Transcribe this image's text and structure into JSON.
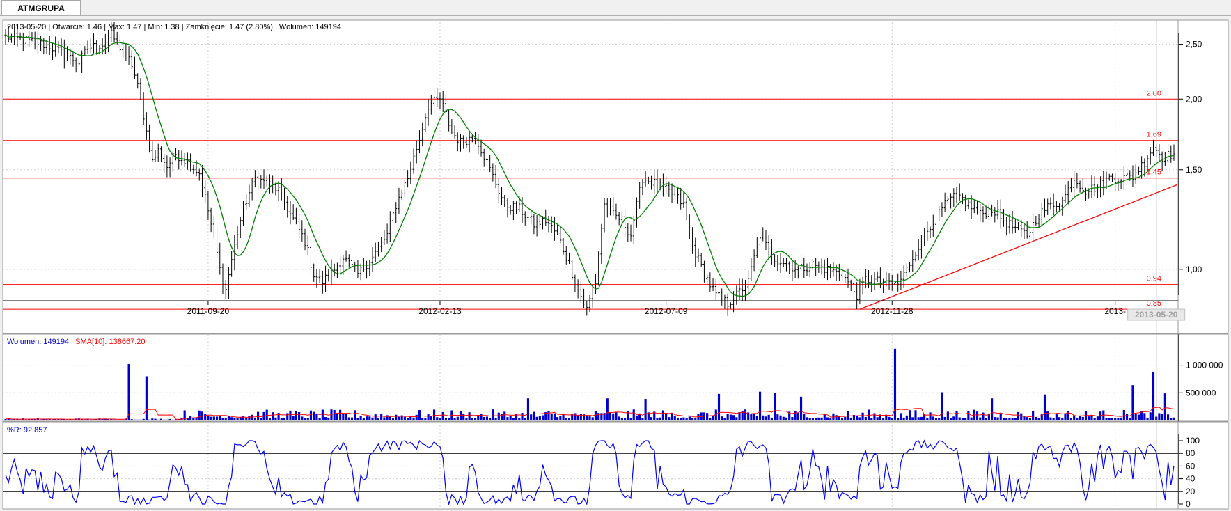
{
  "tab": {
    "label": "ATMGRUPA"
  },
  "info": {
    "text": "2013-05-20 | Otwarcie: 1.46 | Max: 1.47 | Min: 1.38 | Zamknięcie: 1.47 (2.80%) | Wolumen: 149194"
  },
  "colors": {
    "price": "#000000",
    "sma_price": "#008000",
    "hline": "#ff0000",
    "volume": "#0000cc",
    "volume_sma": "#ff0000",
    "wr": "#0000ff"
  },
  "chart_data": [
    {
      "type": "bar",
      "subtype": "ohlc",
      "ylim": [
        0.9,
        2.62
      ],
      "yscale": "log",
      "yticks": [
        1.0,
        1.5,
        2.0,
        2.5
      ],
      "ytick_labels": [
        "1,00",
        "1,50",
        "2,00",
        "2,50"
      ],
      "x_tick_labels": [
        "2011-09-20",
        "2012-02-13",
        "2012-07-09",
        "2012-11-28",
        "2013-"
      ],
      "cursor_label": "2013-05-20",
      "hlines": [
        {
          "value": 2.0,
          "label": "2,00"
        },
        {
          "value": 1.69,
          "label": "1,69"
        },
        {
          "value": 1.45,
          "label": "1,45"
        },
        {
          "value": 0.94,
          "label": "0,94"
        },
        {
          "value": 0.85,
          "label": "0,85"
        }
      ],
      "trendline": {
        "from": {
          "bar": 291,
          "value": 0.85
        },
        "to": {
          "bar": 400,
          "value": 1.41
        }
      },
      "close_keys": [
        [
          0,
          2.58
        ],
        [
          10,
          2.52
        ],
        [
          15,
          2.48
        ],
        [
          20,
          2.4
        ],
        [
          25,
          2.32
        ],
        [
          28,
          2.46
        ],
        [
          33,
          2.5
        ],
        [
          36,
          2.6
        ],
        [
          40,
          2.43
        ],
        [
          43,
          2.3
        ],
        [
          46,
          2.0
        ],
        [
          48,
          1.75
        ],
        [
          50,
          1.55
        ],
        [
          52,
          1.62
        ],
        [
          55,
          1.52
        ],
        [
          58,
          1.6
        ],
        [
          62,
          1.55
        ],
        [
          66,
          1.48
        ],
        [
          70,
          1.2
        ],
        [
          73,
          1.0
        ],
        [
          75,
          0.92
        ],
        [
          78,
          1.1
        ],
        [
          81,
          1.28
        ],
        [
          85,
          1.45
        ],
        [
          89,
          1.42
        ],
        [
          93,
          1.38
        ],
        [
          97,
          1.25
        ],
        [
          102,
          1.12
        ],
        [
          105,
          0.98
        ],
        [
          108,
          0.95
        ],
        [
          112,
          1.0
        ],
        [
          115,
          1.05
        ],
        [
          120,
          0.98
        ],
        [
          125,
          1.05
        ],
        [
          130,
          1.15
        ],
        [
          133,
          1.3
        ],
        [
          137,
          1.45
        ],
        [
          141,
          1.7
        ],
        [
          144,
          1.95
        ],
        [
          148,
          2.0
        ],
        [
          152,
          1.75
        ],
        [
          155,
          1.68
        ],
        [
          160,
          1.72
        ],
        [
          165,
          1.5
        ],
        [
          170,
          1.3
        ],
        [
          175,
          1.28
        ],
        [
          180,
          1.2
        ],
        [
          184,
          1.22
        ],
        [
          188,
          1.15
        ],
        [
          192,
          1.02
        ],
        [
          195,
          0.92
        ],
        [
          198,
          0.85
        ],
        [
          201,
          0.95
        ],
        [
          204,
          1.3
        ],
        [
          207,
          1.25
        ],
        [
          210,
          1.22
        ],
        [
          213,
          1.15
        ],
        [
          217,
          1.45
        ],
        [
          221,
          1.42
        ],
        [
          225,
          1.38
        ],
        [
          228,
          1.35
        ],
        [
          231,
          1.3
        ],
        [
          234,
          1.1
        ],
        [
          238,
          0.98
        ],
        [
          242,
          0.9
        ],
        [
          246,
          0.87
        ],
        [
          249,
          0.9
        ],
        [
          253,
          0.95
        ],
        [
          257,
          1.15
        ],
        [
          261,
          1.05
        ],
        [
          265,
          1.03
        ],
        [
          270,
          1.0
        ],
        [
          275,
          1.02
        ],
        [
          280,
          1.0
        ],
        [
          285,
          0.98
        ],
        [
          290,
          0.9
        ],
        [
          293,
          0.96
        ],
        [
          298,
          0.95
        ],
        [
          304,
          0.94
        ],
        [
          307,
          1.0
        ],
        [
          311,
          1.1
        ],
        [
          315,
          1.2
        ],
        [
          320,
          1.3
        ],
        [
          324,
          1.36
        ],
        [
          328,
          1.3
        ],
        [
          332,
          1.25
        ],
        [
          336,
          1.28
        ],
        [
          340,
          1.22
        ],
        [
          344,
          1.18
        ],
        [
          348,
          1.15
        ],
        [
          352,
          1.25
        ],
        [
          356,
          1.3
        ],
        [
          360,
          1.32
        ],
        [
          364,
          1.45
        ],
        [
          368,
          1.38
        ],
        [
          372,
          1.4
        ],
        [
          376,
          1.45
        ],
        [
          380,
          1.45
        ],
        [
          384,
          1.46
        ],
        [
          388,
          1.55
        ],
        [
          391,
          1.65
        ],
        [
          394,
          1.58
        ],
        [
          398,
          1.6
        ]
      ],
      "sma_period": 10
    },
    {
      "type": "bar",
      "series": [
        {
          "name": "Wolumen",
          "last_value": "149194"
        },
        {
          "name": "SMA[10]",
          "last_value": "138667.20"
        }
      ],
      "ylim": [
        0,
        1360000
      ],
      "yticks": [
        500000,
        1000000
      ],
      "ytick_labels": [
        "500 000",
        "1 000 000"
      ],
      "spikes": [
        [
          42,
          1020000
        ],
        [
          48,
          800000
        ],
        [
          303,
          1300000
        ],
        [
          243,
          480000
        ],
        [
          257,
          520000
        ],
        [
          262,
          500000
        ],
        [
          319,
          510000
        ],
        [
          384,
          640000
        ],
        [
          391,
          870000
        ],
        [
          395,
          490000
        ],
        [
          205,
          400000
        ],
        [
          218,
          390000
        ],
        [
          178,
          400000
        ],
        [
          271,
          430000
        ],
        [
          336,
          400000
        ],
        [
          354,
          470000
        ]
      ]
    },
    {
      "type": "line",
      "series": [
        {
          "name": "%R",
          "last_value": "92.857"
        }
      ],
      "ylim": [
        0,
        100
      ],
      "yticks": [
        0,
        20,
        40,
        60,
        80,
        100
      ],
      "ytick_labels": [
        "0",
        "20",
        "40",
        "60",
        "80",
        "100"
      ],
      "levels": [
        20,
        80
      ]
    }
  ]
}
